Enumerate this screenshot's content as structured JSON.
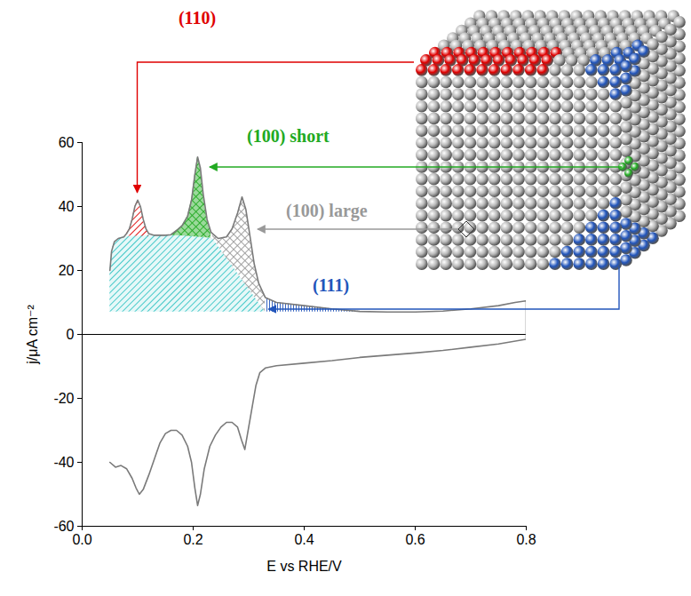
{
  "chart_data": {
    "type": "line",
    "xlabel": "E vs RHE/V",
    "ylabel": "j/μA cm⁻²",
    "xlim": [
      0,
      0.8
    ],
    "xticks": [
      {
        "value": 0,
        "label": "0.0"
      },
      0.2,
      0.4,
      0.6,
      0.8
    ],
    "ylim": [
      -60,
      60
    ],
    "yticks": [
      -60,
      -40,
      -20,
      0,
      20,
      40,
      60
    ],
    "series": [
      {
        "color": "#7a7a7a",
        "x": [
          0.05,
          0.053,
          0.058,
          0.065,
          0.075,
          0.08,
          0.085,
          0.09,
          0.095,
          0.1,
          0.105,
          0.11,
          0.115,
          0.12,
          0.13,
          0.15,
          0.16,
          0.17,
          0.18,
          0.19,
          0.197,
          0.203,
          0.208,
          0.213,
          0.218,
          0.225,
          0.232,
          0.235,
          0.245,
          0.26,
          0.27,
          0.28,
          0.288,
          0.295,
          0.303,
          0.31,
          0.318,
          0.33,
          0.35,
          0.4,
          0.45,
          0.5,
          0.55,
          0.6,
          0.65,
          0.7,
          0.75,
          0.78,
          0.8,
          0.8,
          0.75,
          0.7,
          0.65,
          0.6,
          0.55,
          0.5,
          0.45,
          0.4,
          0.35,
          0.33,
          0.32,
          0.313,
          0.307,
          0.3,
          0.293,
          0.287,
          0.28,
          0.27,
          0.26,
          0.25,
          0.24,
          0.23,
          0.22,
          0.213,
          0.208,
          0.203,
          0.197,
          0.19,
          0.18,
          0.17,
          0.16,
          0.15,
          0.14,
          0.13,
          0.12,
          0.11,
          0.103,
          0.097,
          0.09,
          0.08,
          0.07,
          0.06,
          0.05
        ],
        "values": [
          20,
          26,
          29,
          30,
          30.5,
          31.5,
          33,
          36,
          40,
          42,
          40,
          36,
          33,
          31.5,
          31,
          31,
          31.2,
          32.5,
          34,
          37,
          42,
          50,
          55.5,
          52,
          44,
          36,
          32,
          31.5,
          30,
          30.5,
          33,
          38,
          43,
          39,
          30,
          22,
          16,
          11.5,
          10,
          9,
          8,
          7.2,
          7,
          7,
          7.3,
          8,
          9,
          10,
          10.5,
          -1.5,
          -3,
          -4,
          -5,
          -5.8,
          -6.5,
          -7.2,
          -8.2,
          -9,
          -9.8,
          -10.5,
          -12,
          -16,
          -22,
          -29,
          -36,
          -33,
          -29,
          -27.5,
          -27.5,
          -29,
          -31.5,
          -35,
          -42,
          -50,
          -53.5,
          -48,
          -40,
          -35,
          -31.5,
          -30,
          -30,
          -31,
          -34,
          -39,
          -44,
          -48.5,
          -50,
          -48,
          -45,
          -42,
          -41,
          -41.5,
          -40
        ]
      }
    ],
    "areas": [
      {
        "color": "#33c4c4",
        "x": [
          0.05,
          0.053,
          0.058,
          0.065,
          0.075,
          0.12,
          0.18,
          0.235,
          0.33
        ],
        "lower": [
          7,
          7,
          7,
          7,
          7,
          7,
          7,
          7,
          7
        ],
        "upper": [
          20,
          26,
          29,
          30,
          30.5,
          31,
          31,
          30,
          7
        ]
      },
      {
        "label": "(110)",
        "color": "#e00000",
        "x": [
          0.08,
          0.085,
          0.09,
          0.095,
          0.1,
          0.105,
          0.11,
          0.115,
          0.12
        ],
        "lower": [
          30.7,
          30.7,
          30.7,
          30.7,
          30.7,
          30.7,
          30.7,
          30.7,
          30.7
        ],
        "upper": [
          31.5,
          33,
          36,
          40,
          42,
          40,
          36,
          33,
          31.5
        ]
      },
      {
        "label": "(100) short",
        "color": "#22aa22",
        "x": [
          0.16,
          0.17,
          0.18,
          0.19,
          0.197,
          0.203,
          0.208,
          0.213,
          0.218,
          0.225,
          0.232
        ],
        "lower": [
          31,
          30.9,
          30.8,
          30.7,
          30.6,
          30.5,
          30.4,
          30.4,
          30.3,
          30.2,
          30.1
        ],
        "upper": [
          31.2,
          32.5,
          34,
          37,
          42,
          50,
          55.5,
          52,
          44,
          36,
          32
        ]
      },
      {
        "label": "(100) large",
        "color": "#999999",
        "x": [
          0.235,
          0.245,
          0.26,
          0.27,
          0.28,
          0.288,
          0.295,
          0.303,
          0.31,
          0.318,
          0.33
        ],
        "lower": [
          30,
          27.6,
          23.9,
          21.5,
          19.1,
          17.2,
          15.5,
          13.5,
          11.8,
          9.9,
          7
        ],
        "upper": [
          31.5,
          30,
          30.5,
          33,
          38,
          43,
          39,
          30,
          22,
          16,
          11.5
        ]
      },
      {
        "label": "(111)",
        "color": "#2255bb",
        "x": [
          0.33,
          0.35,
          0.4,
          0.45,
          0.5
        ],
        "lower": [
          7,
          7,
          7,
          7,
          7
        ],
        "upper": [
          11.5,
          10,
          9,
          8,
          7.2
        ]
      }
    ]
  }
}
